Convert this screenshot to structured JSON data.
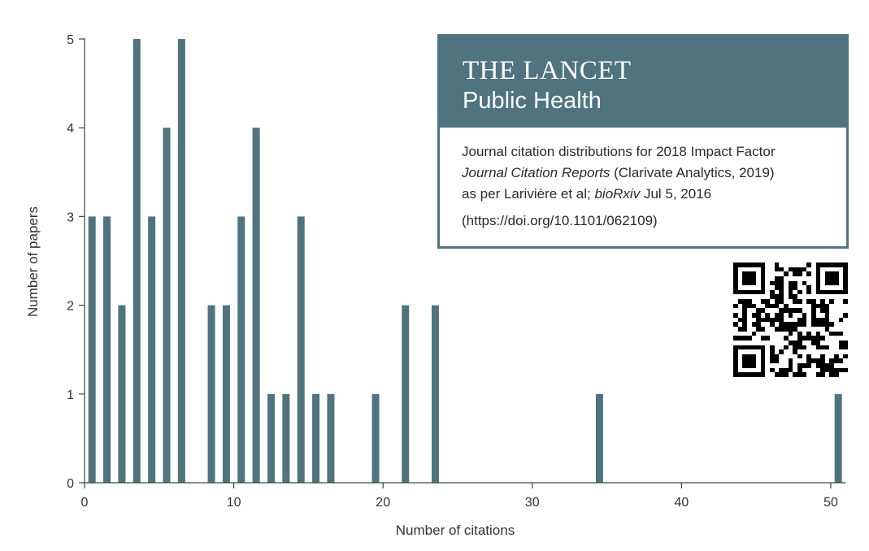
{
  "chart_data": {
    "type": "bar",
    "title": "",
    "xlabel": "Number of citations",
    "ylabel": "Number of papers",
    "x": [
      0,
      1,
      2,
      3,
      4,
      5,
      6,
      8,
      9,
      10,
      11,
      12,
      13,
      14,
      15,
      16,
      19,
      21,
      23,
      34,
      50
    ],
    "values": [
      3,
      3,
      2,
      5,
      3,
      4,
      5,
      2,
      2,
      3,
      4,
      1,
      1,
      3,
      1,
      1,
      1,
      2,
      2,
      1,
      1
    ],
    "xlim": [
      0,
      51
    ],
    "ylim": [
      0,
      5
    ],
    "xticks": [
      0,
      10,
      20,
      30,
      40,
      50
    ],
    "yticks": [
      0,
      1,
      2,
      3,
      4,
      5
    ],
    "grid": false,
    "bar_color": "#4f7480"
  },
  "info_box": {
    "title": "THE LANCET",
    "subtitle": "Public Health",
    "line1": "Journal citation distributions for 2018 Impact Factor",
    "line2_italic": "Journal Citation Reports",
    "line2_rest": " (Clarivate Analytics, 2019)",
    "line3_start": "as per Larivière et al; ",
    "line3_italic": "bioRxiv",
    "line3_end": " Jul 5, 2016",
    "doi": "(https://doi.org/10.1101/062109)",
    "brand_color": "#4f7480"
  },
  "qr_code": {
    "icon": "qr-code-icon"
  }
}
